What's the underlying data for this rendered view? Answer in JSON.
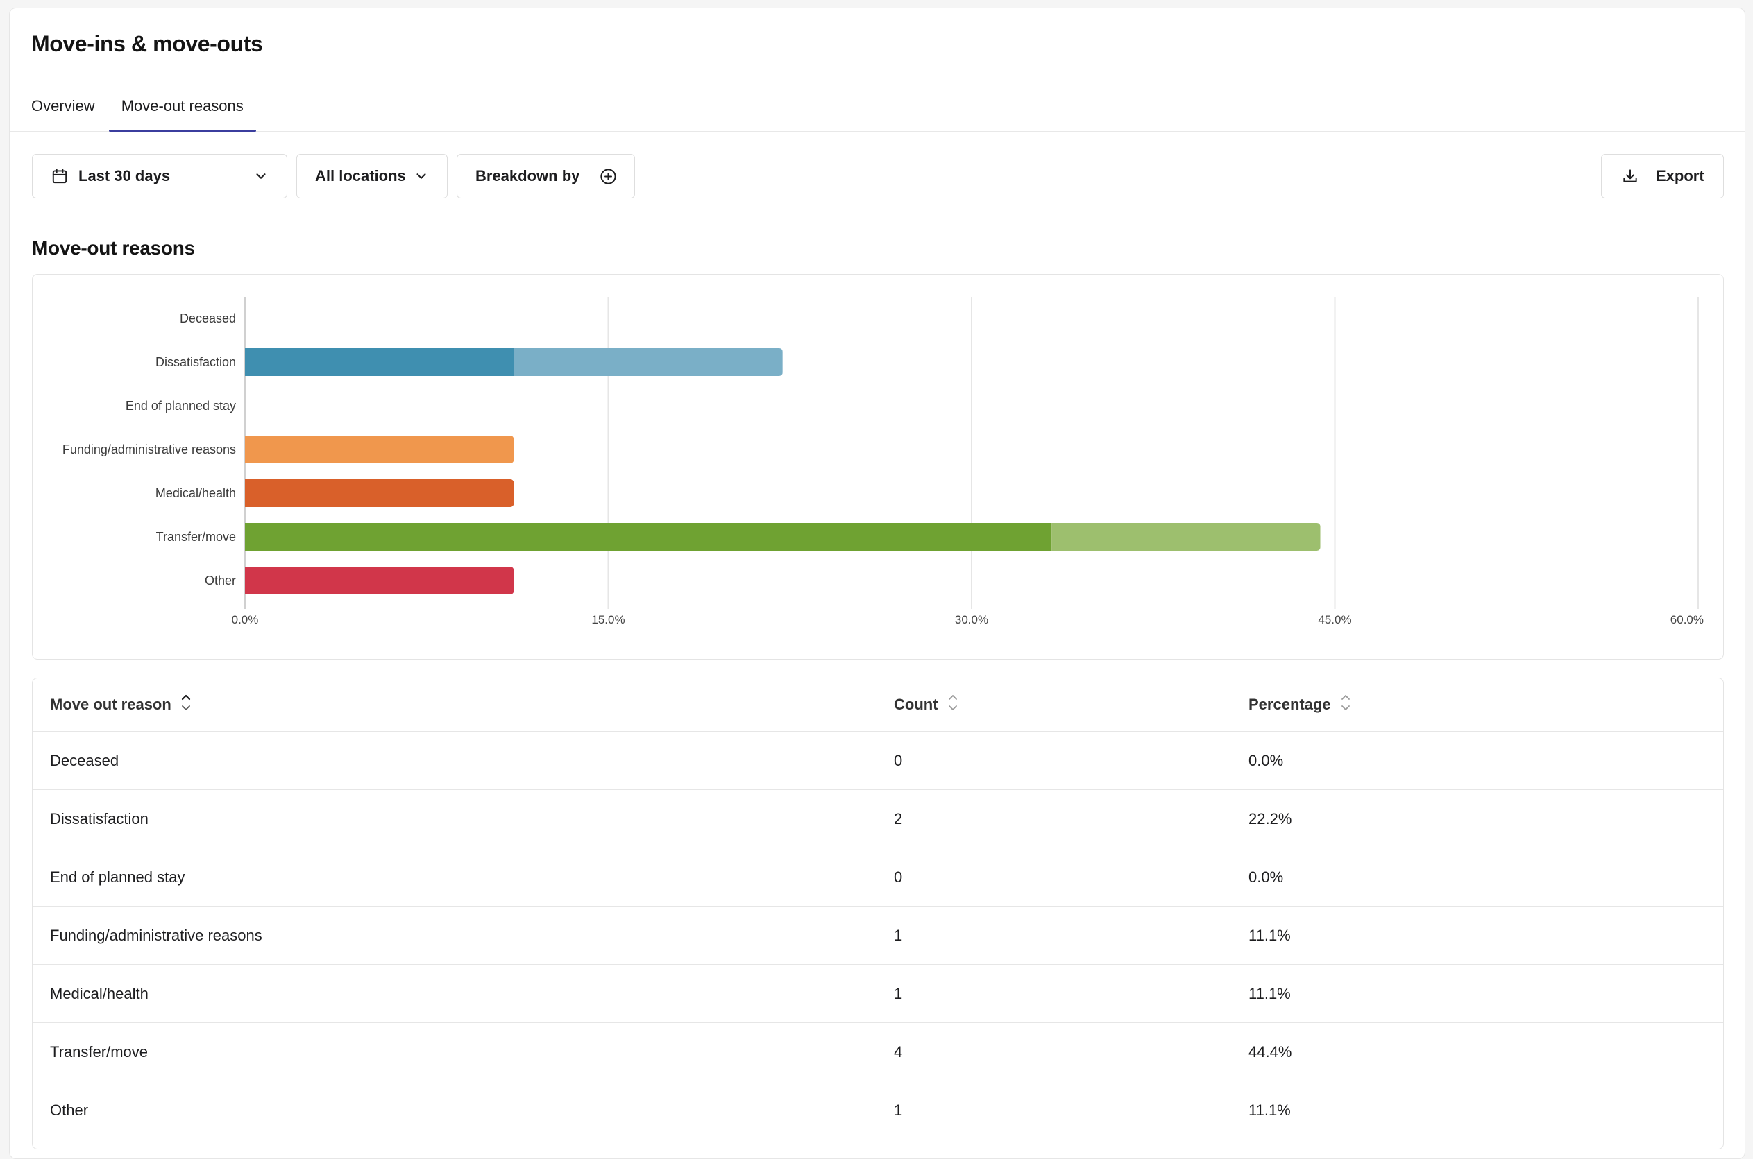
{
  "page": {
    "title": "Move-ins & move-outs"
  },
  "tabs": [
    {
      "label": "Overview",
      "active": false
    },
    {
      "label": "Move-out reasons",
      "active": true
    }
  ],
  "filters": {
    "date_range": "Last 30 days",
    "locations": "All locations",
    "breakdown": "Breakdown by",
    "export": "Export"
  },
  "section": {
    "title": "Move-out reasons"
  },
  "chart_data": {
    "type": "bar",
    "orientation": "horizontal",
    "stacked": true,
    "categories": [
      "Deceased",
      "Dissatisfaction",
      "End of planned stay",
      "Funding/administrative reasons",
      "Medical/health",
      "Transfer/move",
      "Other"
    ],
    "segments": [
      [],
      [
        {
          "value": 11.1,
          "color": "#3f8fb0"
        },
        {
          "value": 11.1,
          "color": "#7aafc7"
        }
      ],
      [],
      [
        {
          "value": 11.1,
          "color": "#f0974d"
        }
      ],
      [
        {
          "value": 11.1,
          "color": "#d9602a"
        }
      ],
      [
        {
          "value": 33.3,
          "color": "#6fa232"
        },
        {
          "value": 11.1,
          "color": "#9dbf6e"
        }
      ],
      [
        {
          "value": 11.1,
          "color": "#d1364a"
        }
      ]
    ],
    "xlim": [
      0,
      60
    ],
    "x_ticks": [
      "0.0%",
      "15.0%",
      "30.0%",
      "45.0%",
      "60.0%"
    ],
    "x_tick_values": [
      0,
      15,
      30,
      45,
      60
    ],
    "grid": true
  },
  "table": {
    "headers": {
      "reason": "Move out reason",
      "count": "Count",
      "percentage": "Percentage"
    },
    "rows": [
      {
        "reason": "Deceased",
        "count": "0",
        "percentage": "0.0%"
      },
      {
        "reason": "Dissatisfaction",
        "count": "2",
        "percentage": "22.2%"
      },
      {
        "reason": "End of planned stay",
        "count": "0",
        "percentage": "0.0%"
      },
      {
        "reason": "Funding/administrative reasons",
        "count": "1",
        "percentage": "11.1%"
      },
      {
        "reason": "Medical/health",
        "count": "1",
        "percentage": "11.1%"
      },
      {
        "reason": "Transfer/move",
        "count": "4",
        "percentage": "44.4%"
      },
      {
        "reason": "Other",
        "count": "1",
        "percentage": "11.1%"
      }
    ]
  }
}
